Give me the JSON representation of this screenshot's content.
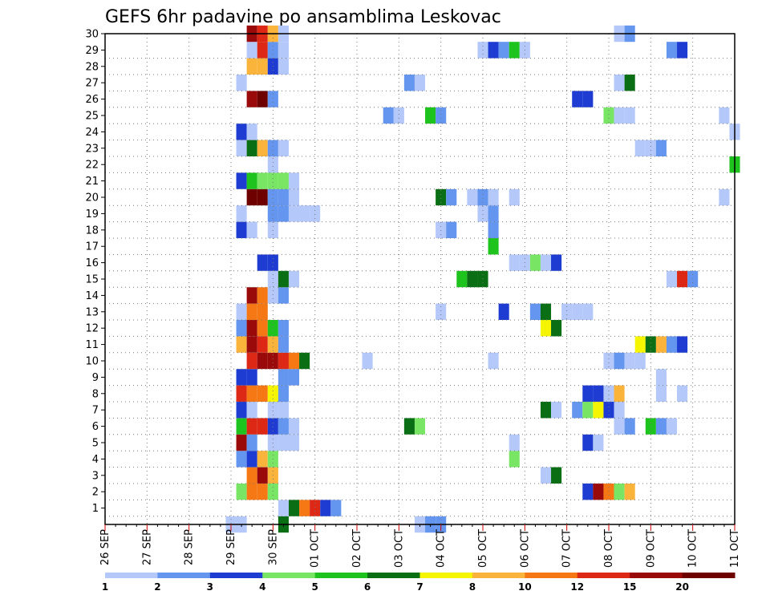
{
  "chart_data": {
    "type": "heatmap",
    "title": "GEFS 6hr padavine po ansamblima Leskovac",
    "x_tick_labels": [
      "26 SEP",
      "27 SEP",
      "28 SEP",
      "29 SEP",
      "30 SEP",
      "01 OCT",
      "02 OCT",
      "03 OCT",
      "04 OCT",
      "05 OCT",
      "06 OCT",
      "07 OCT",
      "08 OCT",
      "09 OCT",
      "10 OCT",
      "11 OCT"
    ],
    "x_range_steps": [
      0,
      60
    ],
    "y_tick_labels": [
      "1",
      "2",
      "3",
      "4",
      "5",
      "6",
      "7",
      "8",
      "9",
      "10",
      "11",
      "12",
      "13",
      "14",
      "15",
      "16",
      "17",
      "18",
      "19",
      "20",
      "21",
      "22",
      "23",
      "24",
      "25",
      "26",
      "27",
      "28",
      "29",
      "30"
    ],
    "y_range": [
      0,
      30
    ],
    "grid": true,
    "colorbar": {
      "labels": [
        "1",
        "2",
        "3",
        "4",
        "5",
        "6",
        "7",
        "8",
        "10",
        "12",
        "15",
        "20"
      ],
      "levels": [
        1,
        2,
        3,
        4,
        5,
        6,
        7,
        8,
        10,
        12,
        15,
        20
      ],
      "colors": [
        "#b4c8fa",
        "#6496f0",
        "#1e3cd2",
        "#78e664",
        "#1ec31e",
        "#0a6e14",
        "#f5f500",
        "#fab43c",
        "#f57814",
        "#dc2814",
        "#9b0a0a",
        "#6e0000"
      ]
    },
    "cells": [
      [
        0,
        12,
        1
      ],
      [
        0,
        13,
        1
      ],
      [
        0,
        17,
        6
      ],
      [
        0,
        30,
        1
      ],
      [
        0,
        31,
        2
      ],
      [
        0,
        32,
        2
      ],
      [
        1,
        17,
        1
      ],
      [
        1,
        18,
        6
      ],
      [
        1,
        19,
        9
      ],
      [
        1,
        20,
        10
      ],
      [
        1,
        21,
        3
      ],
      [
        1,
        22,
        2
      ],
      [
        2,
        13,
        4
      ],
      [
        2,
        14,
        9
      ],
      [
        2,
        15,
        9
      ],
      [
        2,
        16,
        4
      ],
      [
        2,
        46,
        3
      ],
      [
        2,
        47,
        11
      ],
      [
        2,
        48,
        9
      ],
      [
        2,
        49,
        4
      ],
      [
        2,
        50,
        8
      ],
      [
        3,
        14,
        9
      ],
      [
        3,
        15,
        11
      ],
      [
        3,
        16,
        8
      ],
      [
        3,
        42,
        1
      ],
      [
        3,
        43,
        6
      ],
      [
        4,
        13,
        2
      ],
      [
        4,
        14,
        3
      ],
      [
        4,
        15,
        8
      ],
      [
        4,
        16,
        4
      ],
      [
        4,
        39,
        4
      ],
      [
        5,
        13,
        11
      ],
      [
        5,
        14,
        2
      ],
      [
        5,
        16,
        1
      ],
      [
        5,
        17,
        1
      ],
      [
        5,
        18,
        1
      ],
      [
        5,
        39,
        1
      ],
      [
        5,
        46,
        3
      ],
      [
        5,
        47,
        1
      ],
      [
        6,
        13,
        5
      ],
      [
        6,
        14,
        10
      ],
      [
        6,
        15,
        10
      ],
      [
        6,
        16,
        3
      ],
      [
        6,
        17,
        2
      ],
      [
        6,
        18,
        1
      ],
      [
        6,
        29,
        6
      ],
      [
        6,
        30,
        4
      ],
      [
        6,
        49,
        1
      ],
      [
        6,
        50,
        2
      ],
      [
        6,
        52,
        5
      ],
      [
        6,
        53,
        2
      ],
      [
        6,
        54,
        1
      ],
      [
        7,
        13,
        3
      ],
      [
        7,
        14,
        1
      ],
      [
        7,
        16,
        1
      ],
      [
        7,
        17,
        1
      ],
      [
        7,
        42,
        6
      ],
      [
        7,
        43,
        1
      ],
      [
        7,
        45,
        2
      ],
      [
        7,
        46,
        4
      ],
      [
        7,
        47,
        7
      ],
      [
        7,
        48,
        3
      ],
      [
        7,
        49,
        1
      ],
      [
        8,
        13,
        10
      ],
      [
        8,
        14,
        9
      ],
      [
        8,
        15,
        9
      ],
      [
        8,
        16,
        7
      ],
      [
        8,
        17,
        2
      ],
      [
        8,
        46,
        3
      ],
      [
        8,
        47,
        3
      ],
      [
        8,
        48,
        1
      ],
      [
        8,
        49,
        8
      ],
      [
        8,
        53,
        1
      ],
      [
        8,
        55,
        1
      ],
      [
        9,
        13,
        3
      ],
      [
        9,
        14,
        3
      ],
      [
        9,
        17,
        2
      ],
      [
        9,
        18,
        2
      ],
      [
        9,
        53,
        1
      ],
      [
        10,
        14,
        10
      ],
      [
        10,
        15,
        11
      ],
      [
        10,
        16,
        11
      ],
      [
        10,
        17,
        10
      ],
      [
        10,
        18,
        9
      ],
      [
        10,
        19,
        6
      ],
      [
        10,
        25,
        1
      ],
      [
        10,
        37,
        1
      ],
      [
        10,
        48,
        1
      ],
      [
        10,
        49,
        2
      ],
      [
        10,
        50,
        1
      ],
      [
        10,
        51,
        1
      ],
      [
        11,
        13,
        8
      ],
      [
        11,
        14,
        11
      ],
      [
        11,
        15,
        10
      ],
      [
        11,
        16,
        8
      ],
      [
        11,
        17,
        2
      ],
      [
        11,
        51,
        7
      ],
      [
        11,
        52,
        6
      ],
      [
        11,
        53,
        8
      ],
      [
        11,
        54,
        2
      ],
      [
        11,
        55,
        3
      ],
      [
        12,
        13,
        2
      ],
      [
        12,
        14,
        11
      ],
      [
        12,
        15,
        9
      ],
      [
        12,
        16,
        5
      ],
      [
        12,
        17,
        2
      ],
      [
        12,
        42,
        7
      ],
      [
        12,
        43,
        6
      ],
      [
        13,
        13,
        1
      ],
      [
        13,
        14,
        9
      ],
      [
        13,
        15,
        9
      ],
      [
        13,
        32,
        1
      ],
      [
        13,
        38,
        3
      ],
      [
        13,
        41,
        2
      ],
      [
        13,
        42,
        6
      ],
      [
        13,
        44,
        1
      ],
      [
        13,
        45,
        1
      ],
      [
        13,
        46,
        1
      ],
      [
        14,
        14,
        11
      ],
      [
        14,
        15,
        9
      ],
      [
        14,
        16,
        1
      ],
      [
        14,
        17,
        2
      ],
      [
        15,
        16,
        1
      ],
      [
        15,
        17,
        6
      ],
      [
        15,
        18,
        1
      ],
      [
        15,
        34,
        5
      ],
      [
        15,
        35,
        6
      ],
      [
        15,
        36,
        6
      ],
      [
        15,
        54,
        1
      ],
      [
        15,
        55,
        10
      ],
      [
        15,
        56,
        2
      ],
      [
        16,
        15,
        3
      ],
      [
        16,
        16,
        3
      ],
      [
        16,
        39,
        1
      ],
      [
        16,
        40,
        1
      ],
      [
        16,
        41,
        4
      ],
      [
        16,
        42,
        1
      ],
      [
        16,
        43,
        3
      ],
      [
        17,
        37,
        5
      ],
      [
        18,
        13,
        3
      ],
      [
        18,
        14,
        1
      ],
      [
        18,
        16,
        1
      ],
      [
        18,
        32,
        1
      ],
      [
        18,
        33,
        2
      ],
      [
        18,
        37,
        2
      ],
      [
        19,
        13,
        1
      ],
      [
        19,
        16,
        2
      ],
      [
        19,
        17,
        2
      ],
      [
        19,
        18,
        1
      ],
      [
        19,
        19,
        1
      ],
      [
        19,
        20,
        1
      ],
      [
        19,
        36,
        1
      ],
      [
        19,
        37,
        2
      ],
      [
        20,
        14,
        12
      ],
      [
        20,
        15,
        12
      ],
      [
        20,
        16,
        2
      ],
      [
        20,
        17,
        2
      ],
      [
        20,
        18,
        1
      ],
      [
        20,
        32,
        6
      ],
      [
        20,
        33,
        2
      ],
      [
        20,
        35,
        1
      ],
      [
        20,
        36,
        2
      ],
      [
        20,
        37,
        1
      ],
      [
        20,
        39,
        1
      ],
      [
        20,
        59,
        1
      ],
      [
        21,
        13,
        3
      ],
      [
        21,
        14,
        5
      ],
      [
        21,
        15,
        4
      ],
      [
        21,
        16,
        4
      ],
      [
        21,
        17,
        4
      ],
      [
        21,
        18,
        1
      ],
      [
        22,
        16,
        1
      ],
      [
        22,
        60,
        5
      ],
      [
        23,
        13,
        1
      ],
      [
        23,
        14,
        6
      ],
      [
        23,
        15,
        8
      ],
      [
        23,
        16,
        2
      ],
      [
        23,
        17,
        1
      ],
      [
        23,
        51,
        1
      ],
      [
        23,
        52,
        1
      ],
      [
        23,
        53,
        2
      ],
      [
        24,
        13,
        3
      ],
      [
        24,
        14,
        1
      ],
      [
        24,
        60,
        1
      ],
      [
        25,
        27,
        2
      ],
      [
        25,
        28,
        1
      ],
      [
        25,
        31,
        5
      ],
      [
        25,
        32,
        2
      ],
      [
        25,
        48,
        4
      ],
      [
        25,
        49,
        1
      ],
      [
        25,
        50,
        1
      ],
      [
        25,
        59,
        1
      ],
      [
        26,
        14,
        11
      ],
      [
        26,
        15,
        12
      ],
      [
        26,
        16,
        2
      ],
      [
        26,
        45,
        3
      ],
      [
        26,
        46,
        3
      ],
      [
        27,
        13,
        1
      ],
      [
        27,
        29,
        2
      ],
      [
        27,
        30,
        1
      ],
      [
        27,
        49,
        1
      ],
      [
        27,
        50,
        6
      ],
      [
        28,
        14,
        8
      ],
      [
        28,
        15,
        8
      ],
      [
        28,
        16,
        3
      ],
      [
        28,
        17,
        1
      ],
      [
        29,
        14,
        1
      ],
      [
        29,
        15,
        10
      ],
      [
        29,
        16,
        2
      ],
      [
        29,
        17,
        1
      ],
      [
        29,
        36,
        1
      ],
      [
        29,
        37,
        3
      ],
      [
        29,
        38,
        2
      ],
      [
        29,
        39,
        5
      ],
      [
        29,
        40,
        1
      ],
      [
        29,
        54,
        2
      ],
      [
        29,
        55,
        3
      ],
      [
        30,
        14,
        11
      ],
      [
        30,
        15,
        10
      ],
      [
        30,
        16,
        8
      ],
      [
        30,
        17,
        1
      ],
      [
        30,
        49,
        1
      ],
      [
        30,
        50,
        2
      ]
    ]
  }
}
